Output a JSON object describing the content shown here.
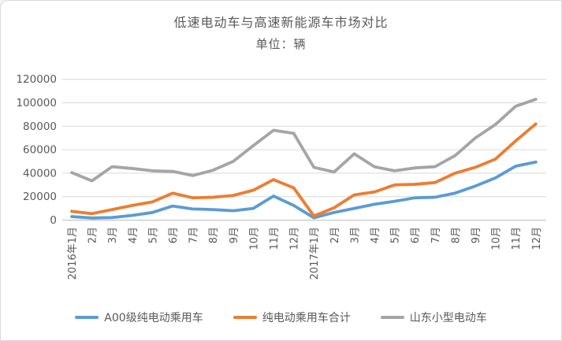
{
  "window": {
    "background": "#ffffff",
    "border_color": "#d9d9d9"
  },
  "chart_data": {
    "type": "line",
    "title": "低速电动车与高速新能源车市场对比",
    "subtitle": "单位：辆",
    "unit": "辆",
    "categories": [
      "2016年1月",
      "2月",
      "3月",
      "4月",
      "5月",
      "6月",
      "7月",
      "8月",
      "9月",
      "10月",
      "11月",
      "12月",
      "2017年1月",
      "2月",
      "3月",
      "4月",
      "5月",
      "6月",
      "7月",
      "8月",
      "9月",
      "10月",
      "11月",
      "12月"
    ],
    "series": [
      {
        "name": "A00级纯电动乘用车",
        "color": "#5B9BD5",
        "values": [
          3000,
          1800,
          2200,
          4000,
          6500,
          12000,
          9500,
          9000,
          8000,
          10000,
          20500,
          12500,
          2000,
          6500,
          10000,
          13500,
          16000,
          19000,
          19500,
          23000,
          29000,
          36000,
          46000,
          49500
        ]
      },
      {
        "name": "纯电动乘用车合计",
        "color": "#ED7D31",
        "values": [
          7500,
          5500,
          9000,
          12500,
          15500,
          23000,
          19000,
          19500,
          21000,
          25500,
          34500,
          27500,
          3500,
          10500,
          21500,
          24000,
          30000,
          30500,
          32000,
          40000,
          45000,
          52000,
          67500,
          82000
        ]
      },
      {
        "name": "山东小型电动车",
        "color": "#A5A5A5",
        "values": [
          40500,
          33500,
          45500,
          44000,
          42000,
          41500,
          38000,
          42500,
          50000,
          63500,
          76500,
          74000,
          45000,
          41000,
          56500,
          45500,
          42000,
          44500,
          45500,
          55000,
          70000,
          81500,
          97000,
          103000
        ]
      }
    ],
    "ylim": [
      0,
      120000
    ],
    "ytick_step": 20000,
    "ytick_labels": [
      "0",
      "20000",
      "40000",
      "60000",
      "80000",
      "100000",
      "120000"
    ],
    "grid": true,
    "grid_color": "#D9D9D9",
    "axis_color": "#BFBFBF",
    "tick_label_color": "#595959",
    "legend_position": "bottom"
  }
}
